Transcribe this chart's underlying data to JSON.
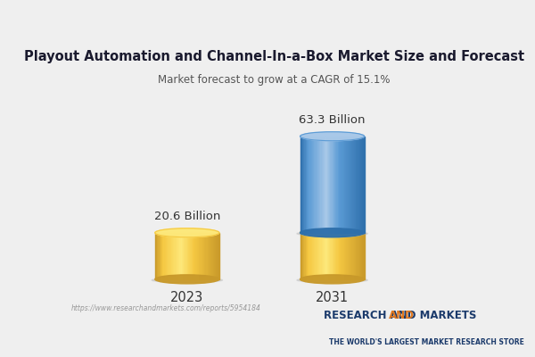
{
  "title": "Playout Automation and Channel-In-a-Box Market Size and Forecast",
  "subtitle": "Market forecast to grow at a CAGR of 15.1%",
  "categories": [
    "2023",
    "2031"
  ],
  "values": [
    20.6,
    63.3
  ],
  "labels": [
    "20.6 Billion",
    "63.3 Billion"
  ],
  "bar_color_gold": "#F5C842",
  "bar_color_gold_dark": "#C8992A",
  "bar_color_gold_light": "#FDE87A",
  "bar_color_blue": "#5B9BD5",
  "bar_color_blue_dark": "#2E6FAB",
  "bar_color_blue_light": "#A8C8E8",
  "background_color": "#EFEFEF",
  "title_color": "#1A1A2E",
  "subtitle_color": "#555555",
  "watermark_text": "https://www.researchandmarkets.com/reports/5954184",
  "brand_line2": "THE WORLD'S LARGEST MARKET RESEARCH STORE",
  "brand_color_blue": "#1B3A6B",
  "brand_color_orange": "#E07820"
}
